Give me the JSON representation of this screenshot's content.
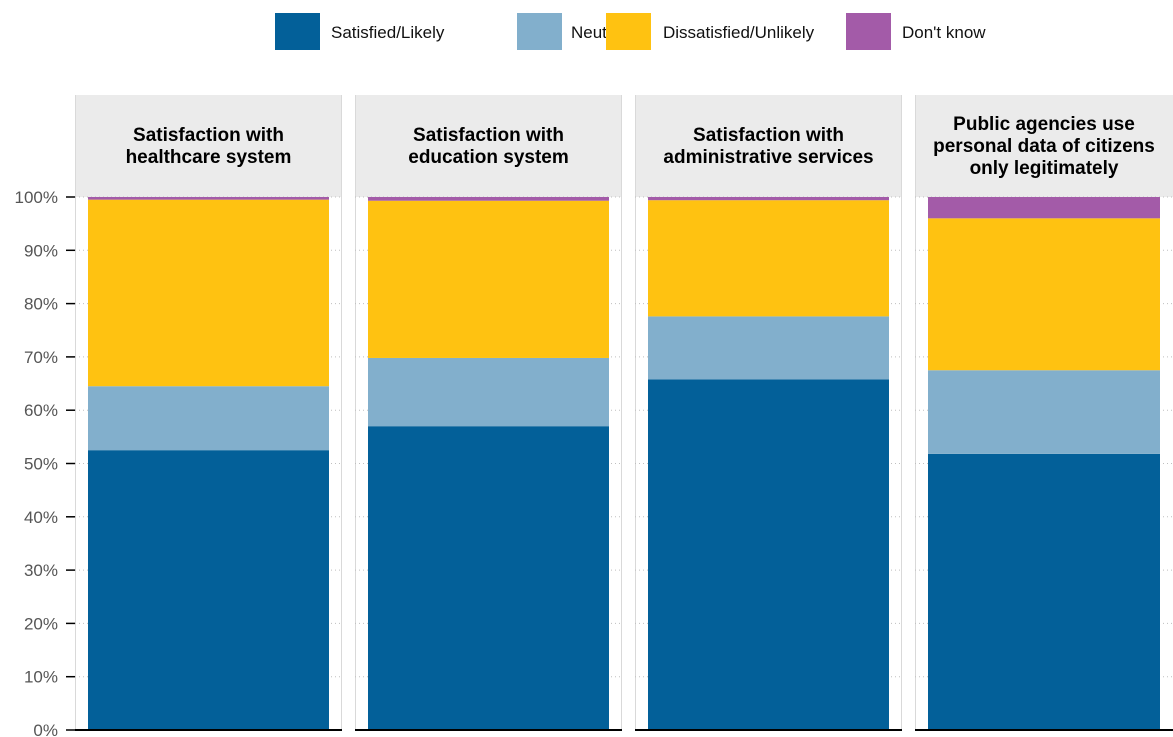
{
  "chart_data": {
    "type": "bar",
    "stacked": true,
    "title": "",
    "xlabel": "",
    "ylabel": "",
    "ylim": [
      0,
      100
    ],
    "y_ticks": [
      "0%",
      "10%",
      "20%",
      "30%",
      "40%",
      "50%",
      "60%",
      "70%",
      "80%",
      "90%",
      "100%"
    ],
    "y_tick_values": [
      0,
      10,
      20,
      30,
      40,
      50,
      60,
      70,
      80,
      90,
      100
    ],
    "grid": true,
    "legend_position": "top",
    "panels": [
      {
        "title": [
          "Satisfaction with",
          "healthcare system"
        ],
        "segments": [
          {
            "series": "Satisfied/Likely",
            "value": 52.5
          },
          {
            "series": "Neutral",
            "value": 12.0
          },
          {
            "series": "Dissatisfied/Unlikely",
            "value": 35.0
          },
          {
            "series": "Don't know",
            "value": 0.5
          }
        ]
      },
      {
        "title": [
          "Satisfaction with",
          "education system"
        ],
        "segments": [
          {
            "series": "Satisfied/Likely",
            "value": 57.0
          },
          {
            "series": "Neutral",
            "value": 12.8
          },
          {
            "series": "Dissatisfied/Unlikely",
            "value": 29.5
          },
          {
            "series": "Don't know",
            "value": 0.7
          }
        ]
      },
      {
        "title": [
          "Satisfaction with",
          "administrative services"
        ],
        "segments": [
          {
            "series": "Satisfied/Likely",
            "value": 65.8
          },
          {
            "series": "Neutral",
            "value": 11.8
          },
          {
            "series": "Dissatisfied/Unlikely",
            "value": 21.8
          },
          {
            "series": "Don't know",
            "value": 0.6
          }
        ]
      },
      {
        "title": [
          "Public agencies use",
          "personal data of citizens",
          "only legitimately"
        ],
        "segments": [
          {
            "series": "Satisfied/Likely",
            "value": 51.8
          },
          {
            "series": "Neutral",
            "value": 15.7
          },
          {
            "series": "Dissatisfied/Unlikely",
            "value": 28.5
          },
          {
            "series": "Don't know",
            "value": 4.0
          }
        ]
      }
    ],
    "series": [
      {
        "name": "Satisfied/Likely",
        "color": "#036099"
      },
      {
        "name": "Neutral",
        "color": "#82AFCC"
      },
      {
        "name": "Dissatisfied/Unlikely",
        "color": "#FFC211"
      },
      {
        "name": "Don't know",
        "color": "#A35BA8"
      }
    ]
  }
}
